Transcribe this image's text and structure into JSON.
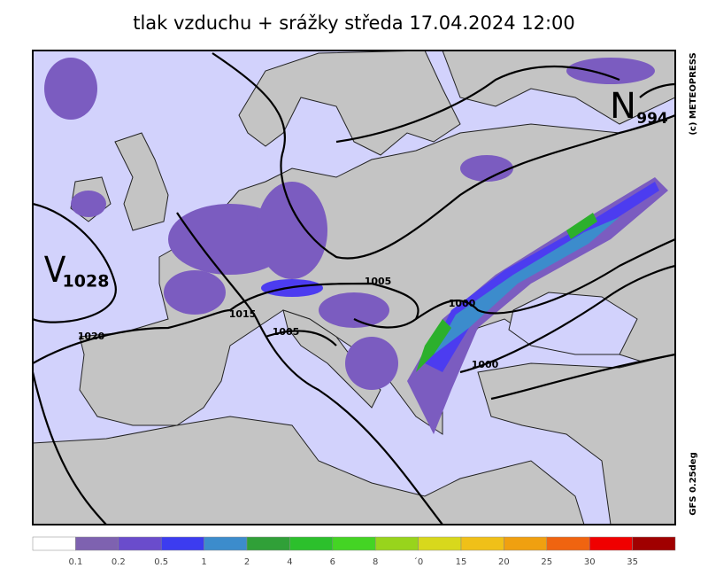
{
  "header": {
    "title": "tlak vzduchu + srážky  středa 17.04.2024 12:00"
  },
  "side_labels": {
    "copyright": "(c) METEOPRESS",
    "model": "GFS 0.25deg"
  },
  "pressure_centers": [
    {
      "letter": "V",
      "value": "1028"
    },
    {
      "letter": "N",
      "value": "994"
    }
  ],
  "isobar_labels": [
    "1005",
    "1015",
    "1020",
    "1005",
    "1000",
    "1000"
  ],
  "legend": {
    "colors": [
      "#ffffff",
      "#7e62b0",
      "#6a4ccc",
      "#3c3cf0",
      "#3c8ccc",
      "#30a038",
      "#2cc02c",
      "#44d424",
      "#98d41c",
      "#d8d81c",
      "#f0c018",
      "#f0a010",
      "#f06410",
      "#f00000",
      "#a00000"
    ],
    "labels": [
      "0.1",
      "0.2",
      "0.5",
      "1",
      "2",
      "4",
      "6",
      "8",
      "´0",
      "15",
      "20",
      "25",
      "30",
      "35"
    ]
  }
}
